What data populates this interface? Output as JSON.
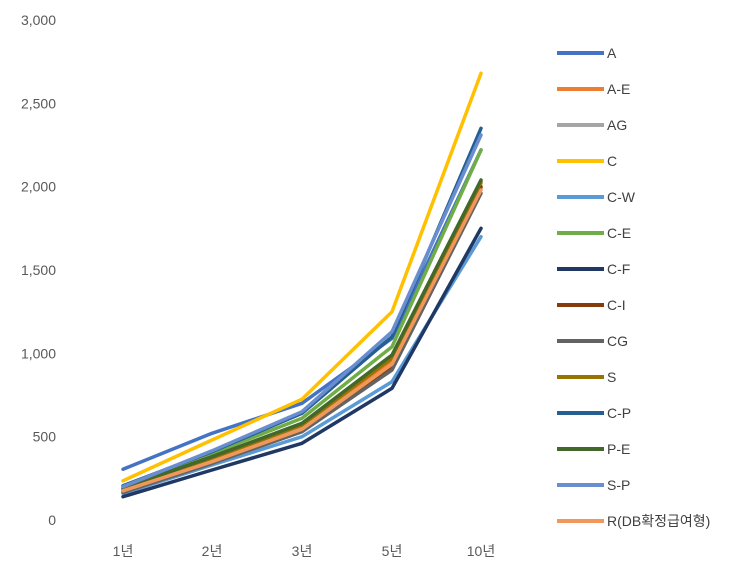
{
  "chart_data": {
    "type": "line",
    "categories": [
      "1년",
      "2년",
      "3년",
      "5년",
      "10년"
    ],
    "ylim": [
      0,
      3000
    ],
    "yticks": [
      "0",
      "500",
      "1,000",
      "1,500",
      "2,000",
      "2,500",
      "3,000"
    ],
    "ytick_values": [
      0,
      500,
      1000,
      1500,
      2000,
      2500,
      3000
    ],
    "grid": false,
    "legend_position": "right",
    "series": [
      {
        "name": "A",
        "color": "#4472C4",
        "values": [
          305,
          520,
          700,
          1090,
          2220
        ]
      },
      {
        "name": "A-E",
        "color": "#ED7D31",
        "values": [
          180,
          360,
          560,
          950,
          2020
        ]
      },
      {
        "name": "AG",
        "color": "#A5A5A5",
        "values": [
          175,
          355,
          550,
          930,
          1990
        ]
      },
      {
        "name": "C",
        "color": "#FFC000",
        "values": [
          235,
          480,
          725,
          1250,
          2680
        ]
      },
      {
        "name": "C-W",
        "color": "#5B9BD5",
        "values": [
          160,
          330,
          500,
          830,
          1700
        ]
      },
      {
        "name": "C-E",
        "color": "#70AD47",
        "values": [
          200,
          400,
          610,
          1040,
          2220
        ]
      },
      {
        "name": "C-F",
        "color": "#203864",
        "values": [
          140,
          300,
          460,
          790,
          1750
        ]
      },
      {
        "name": "C-I",
        "color": "#843C0C",
        "values": [
          170,
          345,
          540,
          920,
          2000
        ]
      },
      {
        "name": "CG",
        "color": "#636363",
        "values": [
          165,
          340,
          530,
          900,
          1960
        ]
      },
      {
        "name": "S",
        "color": "#997300",
        "values": [
          185,
          370,
          570,
          970,
          2030
        ]
      },
      {
        "name": "C-P",
        "color": "#255E91",
        "values": [
          205,
          410,
          640,
          1100,
          2350
        ]
      },
      {
        "name": "P-E",
        "color": "#43682B",
        "values": [
          190,
          380,
          580,
          990,
          2040
        ]
      },
      {
        "name": "S-P",
        "color": "#698ED0",
        "values": [
          200,
          415,
          650,
          1130,
          2310
        ]
      },
      {
        "name": "R(DB확정급여형)",
        "color": "#F1975A",
        "values": [
          175,
          350,
          545,
          935,
          1980
        ]
      }
    ]
  }
}
